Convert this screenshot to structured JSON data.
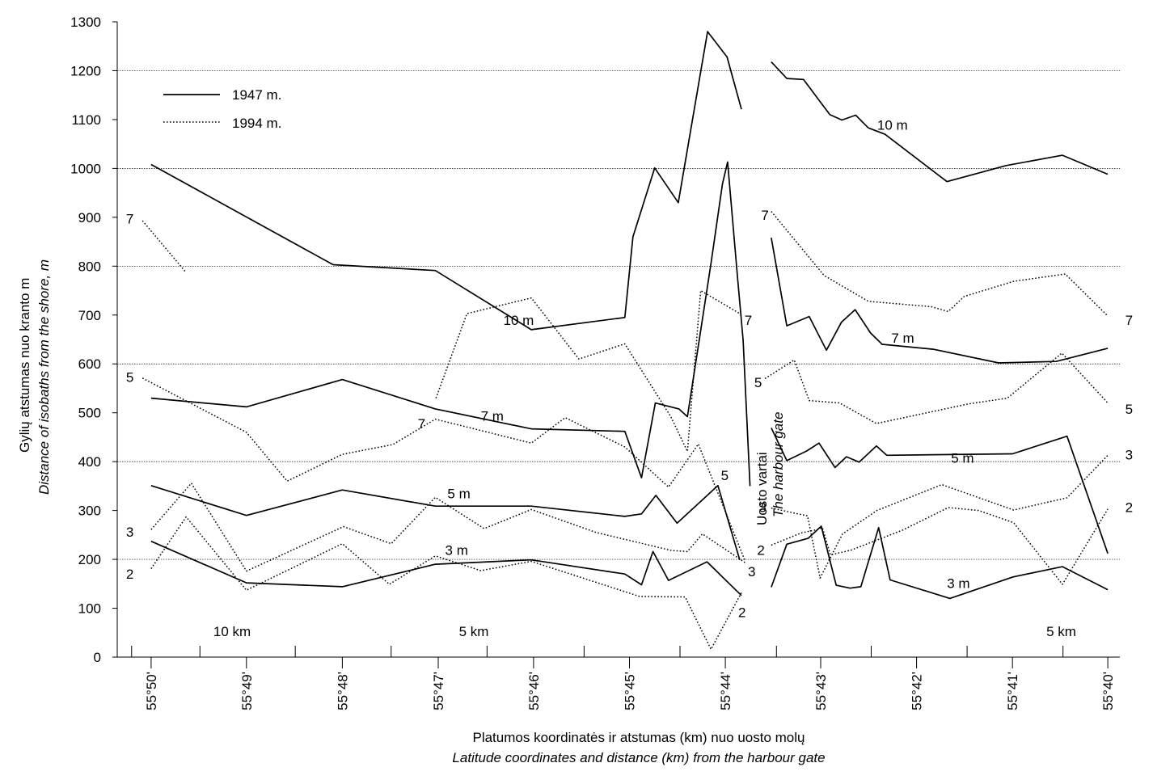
{
  "chart_data": {
    "type": "line",
    "ylabel": "Gylių atstumas nuo kranto  m",
    "ylabel_en": "Distance of isobaths from the shore, m",
    "xlabel": "Platumos koordinatės ir atstumas (km) nuo uosto molų",
    "xlabel_en": "Latitude coordinates and distance (km) from the harbour gate",
    "ylim": [
      0,
      1300
    ],
    "yticks": [
      0,
      100,
      200,
      300,
      400,
      500,
      600,
      700,
      800,
      900,
      1000,
      1100,
      1200,
      1300
    ],
    "grid_y": [
      200,
      400,
      600,
      800,
      1000,
      1200
    ],
    "xlim": [
      55.6646,
      55.8392
    ],
    "x_reverse": true,
    "xticks": [
      {
        "value": 55.8333,
        "label": "55°50'"
      },
      {
        "value": 55.8167,
        "label": "55°49'"
      },
      {
        "value": 55.8,
        "label": "55°48'"
      },
      {
        "value": 55.7833,
        "label": "55°47'"
      },
      {
        "value": 55.7667,
        "label": "55°46'"
      },
      {
        "value": 55.75,
        "label": "55°45'"
      },
      {
        "value": 55.7333,
        "label": "55°44'"
      },
      {
        "value": 55.7167,
        "label": "55°43'"
      },
      {
        "value": 55.7,
        "label": "55°42'"
      },
      {
        "value": 55.6833,
        "label": "55°41'"
      },
      {
        "value": 55.6667,
        "label": "55°40'"
      }
    ],
    "minor_ticks": [
      55.8367,
      55.8248,
      55.8082,
      55.7915,
      55.7748,
      55.7579,
      55.7412,
      55.7244,
      55.7079,
      55.6912,
      55.6745
    ],
    "distance_labels": [
      {
        "x": 55.8192,
        "y": 53,
        "label": "10 km"
      },
      {
        "x": 55.7771,
        "y": 53,
        "label": "5 km"
      },
      {
        "x": 55.6748,
        "y": 53,
        "label": "5 km"
      }
    ],
    "legend": [
      {
        "label": "1947 m.",
        "style": "solid"
      },
      {
        "label": "1994 m.",
        "style": "dotted"
      }
    ],
    "harbour_gate": {
      "label": "Uosto vartai",
      "label_en": "The harbour gate",
      "x": 55.7294
    },
    "series": [
      {
        "name": "1947 m.",
        "isobath": "10 m",
        "style": "solid",
        "segments": [
          [
            [
              55.8333,
              1008
            ],
            [
              55.8016,
              803
            ],
            [
              55.7838,
              791
            ],
            [
              55.7671,
              670
            ],
            [
              55.7508,
              695
            ],
            [
              55.7494,
              860
            ],
            [
              55.7456,
              1001
            ],
            [
              55.7415,
              930
            ],
            [
              55.7364,
              1280
            ],
            [
              55.733,
              1228
            ],
            [
              55.7305,
              1121
            ]
          ],
          [
            [
              55.7253,
              1218
            ],
            [
              55.7226,
              1184
            ],
            [
              55.7197,
              1182
            ],
            [
              55.7151,
              1110
            ],
            [
              55.713,
              1099
            ],
            [
              55.7106,
              1109
            ],
            [
              55.7084,
              1083
            ],
            [
              55.7055,
              1070
            ],
            [
              55.6947,
              973
            ],
            [
              55.6844,
              1006
            ],
            [
              55.6746,
              1027
            ],
            [
              55.6667,
              988
            ]
          ]
        ]
      },
      {
        "name": "1947 m.",
        "isobath": "7 m",
        "style": "solid",
        "segments": [
          [
            [
              55.8333,
              530
            ],
            [
              55.8167,
              512
            ],
            [
              55.8,
              568
            ],
            [
              55.7838,
              508
            ],
            [
              55.7671,
              467
            ],
            [
              55.7508,
              462
            ],
            [
              55.7479,
              367
            ],
            [
              55.7455,
              520
            ],
            [
              55.7414,
              508
            ],
            [
              55.7399,
              492
            ],
            [
              55.7358,
              805
            ],
            [
              55.7338,
              968
            ],
            [
              55.7329,
              1013
            ],
            [
              55.7312,
              780
            ],
            [
              55.7302,
              648
            ],
            [
              55.729,
              350
            ]
          ],
          [
            [
              55.7253,
              858
            ],
            [
              55.7226,
              678
            ],
            [
              55.7187,
              697
            ],
            [
              55.7157,
              628
            ],
            [
              55.7131,
              685
            ],
            [
              55.7107,
              711
            ],
            [
              55.708,
              663
            ],
            [
              55.706,
              640
            ],
            [
              55.6971,
              630
            ],
            [
              55.6857,
              602
            ],
            [
              55.6757,
              605
            ],
            [
              55.6667,
              632
            ]
          ]
        ]
      },
      {
        "name": "1947 m.",
        "isobath": "5 m",
        "style": "solid",
        "segments": [
          [
            [
              55.8333,
              351
            ],
            [
              55.8167,
              290
            ],
            [
              55.8,
              342
            ],
            [
              55.7838,
              309
            ],
            [
              55.7671,
              309
            ],
            [
              55.7508,
              288
            ],
            [
              55.7479,
              293
            ],
            [
              55.7454,
              331
            ],
            [
              55.7417,
              274
            ],
            [
              55.7346,
              351
            ],
            [
              55.7308,
              199
            ]
          ],
          [
            [
              55.7253,
              469
            ],
            [
              55.7226,
              402
            ],
            [
              55.7191,
              422
            ],
            [
              55.717,
              438
            ],
            [
              55.7142,
              388
            ],
            [
              55.7122,
              410
            ],
            [
              55.71,
              399
            ],
            [
              55.707,
              432
            ],
            [
              55.7052,
              413
            ],
            [
              55.6833,
              416
            ],
            [
              55.6738,
              452
            ],
            [
              55.6667,
              212
            ]
          ]
        ]
      },
      {
        "name": "1947 m.",
        "isobath": "3 m",
        "style": "solid",
        "segments": [
          [
            [
              55.8333,
              237
            ],
            [
              55.8167,
              152
            ],
            [
              55.8,
              144
            ],
            [
              55.7838,
              190
            ],
            [
              55.7671,
              199
            ],
            [
              55.7508,
              170
            ],
            [
              55.7479,
              148
            ],
            [
              55.7459,
              216
            ],
            [
              55.7432,
              157
            ],
            [
              55.7365,
              195
            ],
            [
              55.7305,
              126
            ]
          ],
          [
            [
              55.7253,
              143
            ],
            [
              55.7226,
              231
            ],
            [
              55.7189,
              243
            ],
            [
              55.7166,
              268
            ],
            [
              55.714,
              147
            ],
            [
              55.7116,
              141
            ],
            [
              55.7097,
              144
            ],
            [
              55.7066,
              265
            ],
            [
              55.7046,
              158
            ],
            [
              55.6942,
              120
            ],
            [
              55.6832,
              164
            ],
            [
              55.6746,
              185
            ],
            [
              55.6667,
              138
            ]
          ]
        ]
      },
      {
        "name": "1994 m.",
        "isobath": "10 m",
        "style": "dotted",
        "segments": [
          [
            [
              55.7837,
              530
            ],
            [
              55.7783,
              703
            ],
            [
              55.7671,
              735
            ],
            [
              55.7588,
              610
            ],
            [
              55.7508,
              641
            ],
            [
              55.7428,
              492
            ],
            [
              55.7399,
              421
            ],
            [
              55.7376,
              750
            ],
            [
              55.7305,
              701
            ]
          ]
        ]
      },
      {
        "name": "1994 m.",
        "isobath": "7 m",
        "style": "dotted",
        "segments": [
          [
            [
              55.8348,
              893
            ],
            [
              55.8272,
              787
            ]
          ],
          [
            [
              55.7253,
              912
            ],
            [
              55.7161,
              781
            ],
            [
              55.7084,
              728
            ],
            [
              55.6974,
              717
            ],
            [
              55.6945,
              707
            ],
            [
              55.6917,
              738
            ],
            [
              55.6831,
              769
            ],
            [
              55.6741,
              784
            ],
            [
              55.6667,
              698
            ]
          ]
        ]
      },
      {
        "name": "1994 m.",
        "isobath": "5 m",
        "style": "dotted",
        "segments": [
          [
            [
              55.8348,
              571
            ],
            [
              55.8167,
              460
            ],
            [
              55.8096,
              360
            ],
            [
              55.8,
              415
            ],
            [
              55.7912,
              435
            ],
            [
              55.7838,
              487
            ],
            [
              55.7671,
              438
            ],
            [
              55.7612,
              490
            ],
            [
              55.7508,
              430
            ],
            [
              55.7432,
              348
            ],
            [
              55.738,
              436
            ],
            [
              55.7299,
              198
            ]
          ],
          [
            [
              55.7264,
              570
            ],
            [
              55.7213,
              608
            ],
            [
              55.7187,
              525
            ],
            [
              55.7134,
              520
            ],
            [
              55.707,
              478
            ],
            [
              55.691,
              518
            ],
            [
              55.6842,
              530
            ],
            [
              55.6747,
              622
            ],
            [
              55.6667,
              520
            ]
          ]
        ]
      },
      {
        "name": "1994 m.",
        "isobath": "3 m",
        "style": "dotted",
        "segments": [
          [
            [
              55.8333,
              261
            ],
            [
              55.8263,
              356
            ],
            [
              55.8167,
              176
            ],
            [
              55.7998,
              267
            ],
            [
              55.7915,
              232
            ],
            [
              55.7838,
              327
            ],
            [
              55.7753,
              263
            ],
            [
              55.7671,
              302
            ],
            [
              55.7558,
              255
            ],
            [
              55.7426,
              218
            ],
            [
              55.7399,
              216
            ],
            [
              55.7373,
              252
            ],
            [
              55.7297,
              192
            ]
          ],
          [
            [
              55.7253,
              305
            ],
            [
              55.719,
              289
            ],
            [
              55.7168,
              162
            ],
            [
              55.7129,
              252
            ],
            [
              55.7069,
              300
            ],
            [
              55.6956,
              353
            ],
            [
              55.6831,
              301
            ],
            [
              55.6738,
              326
            ],
            [
              55.6667,
              413
            ]
          ]
        ]
      },
      {
        "name": "1994 m.",
        "isobath": "2 m",
        "style": "dotted",
        "segments": [
          [
            [
              55.8333,
              181
            ],
            [
              55.8272,
              287
            ],
            [
              55.8167,
              137
            ],
            [
              55.8,
              232
            ],
            [
              55.7918,
              149
            ],
            [
              55.7838,
              207
            ],
            [
              55.7759,
              177
            ],
            [
              55.7671,
              196
            ],
            [
              55.7482,
              124
            ],
            [
              55.7403,
              123
            ],
            [
              55.7358,
              16
            ],
            [
              55.7305,
              132
            ]
          ],
          [
            [
              55.7253,
              229
            ],
            [
              55.7201,
              254
            ],
            [
              55.7173,
              261
            ],
            [
              55.7164,
              265
            ],
            [
              55.715,
              209
            ],
            [
              55.7114,
              219
            ],
            [
              55.7024,
              260
            ],
            [
              55.6945,
              306
            ],
            [
              55.6892,
              300
            ],
            [
              55.6831,
              275
            ],
            [
              55.6746,
              149
            ],
            [
              55.6667,
              303
            ]
          ]
        ]
      }
    ],
    "annotations": [
      {
        "x": 55.837,
        "y": 897,
        "text": "7"
      },
      {
        "x": 55.7693,
        "y": 690,
        "text": "10 m"
      },
      {
        "x": 55.7293,
        "y": 690,
        "text": "7"
      },
      {
        "x": 55.7862,
        "y": 478,
        "text": "7"
      },
      {
        "x": 55.7739,
        "y": 494,
        "text": "7 m"
      },
      {
        "x": 55.837,
        "y": 573,
        "text": "5"
      },
      {
        "x": 55.7334,
        "y": 372,
        "text": "5"
      },
      {
        "x": 55.7797,
        "y": 335,
        "text": "5 m"
      },
      {
        "x": 55.7801,
        "y": 219,
        "text": "3 m"
      },
      {
        "x": 55.837,
        "y": 256,
        "text": "3"
      },
      {
        "x": 55.837,
        "y": 170,
        "text": "2"
      },
      {
        "x": 55.7287,
        "y": 175,
        "text": "3"
      },
      {
        "x": 55.7304,
        "y": 92,
        "text": "2"
      },
      {
        "x": 55.7042,
        "y": 1089,
        "text": "10 m"
      },
      {
        "x": 55.7264,
        "y": 905,
        "text": "7"
      },
      {
        "x": 55.7024,
        "y": 653,
        "text": "7 m"
      },
      {
        "x": 55.663,
        "y": 690,
        "text": "7"
      },
      {
        "x": 55.7276,
        "y": 562,
        "text": "5"
      },
      {
        "x": 55.663,
        "y": 508,
        "text": "5"
      },
      {
        "x": 55.692,
        "y": 408,
        "text": "5 m"
      },
      {
        "x": 55.7268,
        "y": 307,
        "text": "3"
      },
      {
        "x": 55.663,
        "y": 414,
        "text": "3"
      },
      {
        "x": 55.7271,
        "y": 219,
        "text": "2"
      },
      {
        "x": 55.663,
        "y": 307,
        "text": "2"
      },
      {
        "x": 55.6927,
        "y": 151,
        "text": "3 m"
      }
    ]
  }
}
